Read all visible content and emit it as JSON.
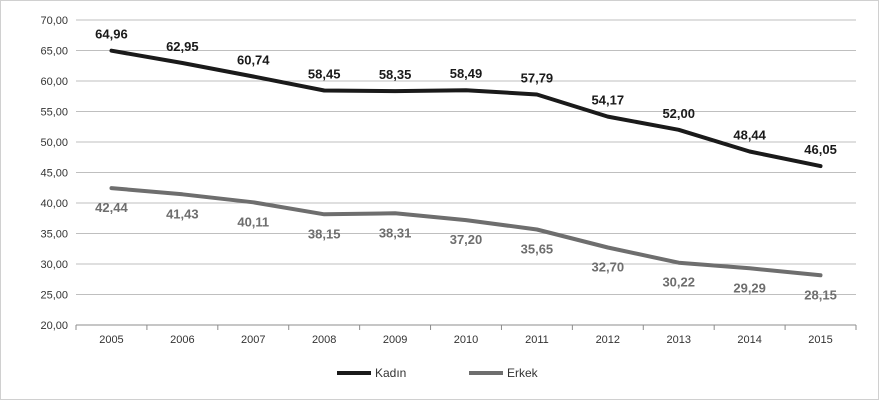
{
  "chart_data": {
    "type": "line",
    "title": "",
    "xlabel": "",
    "ylabel": "",
    "x": [
      "2005",
      "2006",
      "2007",
      "2008",
      "2009",
      "2010",
      "2011",
      "2012",
      "2013",
      "2014",
      "2015"
    ],
    "ylim": [
      20,
      70
    ],
    "yticks": [
      "20,00",
      "25,00",
      "30,00",
      "35,00",
      "40,00",
      "45,00",
      "50,00",
      "55,00",
      "60,00",
      "65,00",
      "70,00"
    ],
    "grid": true,
    "legend_position": "bottom",
    "series": [
      {
        "name": "Kadın",
        "color": "#1a1a1a",
        "label_placement": "above",
        "values": [
          64.96,
          62.95,
          60.74,
          58.45,
          58.35,
          58.49,
          57.79,
          54.17,
          52.0,
          48.44,
          46.05
        ],
        "labels": [
          "64,96",
          "62,95",
          "60,74",
          "58,45",
          "58,35",
          "58,49",
          "57,79",
          "54,17",
          "52,00",
          "48,44",
          "46,05"
        ]
      },
      {
        "name": "Erkek",
        "color": "#6e6e6e",
        "label_placement": "below",
        "values": [
          42.44,
          41.43,
          40.11,
          38.15,
          38.31,
          37.2,
          35.65,
          32.7,
          30.22,
          29.29,
          28.15
        ],
        "labels": [
          "42,44",
          "41,43",
          "40,11",
          "38,15",
          "38,31",
          "37,20",
          "35,65",
          "32,70",
          "30,22",
          "29,29",
          "28,15"
        ]
      }
    ]
  }
}
